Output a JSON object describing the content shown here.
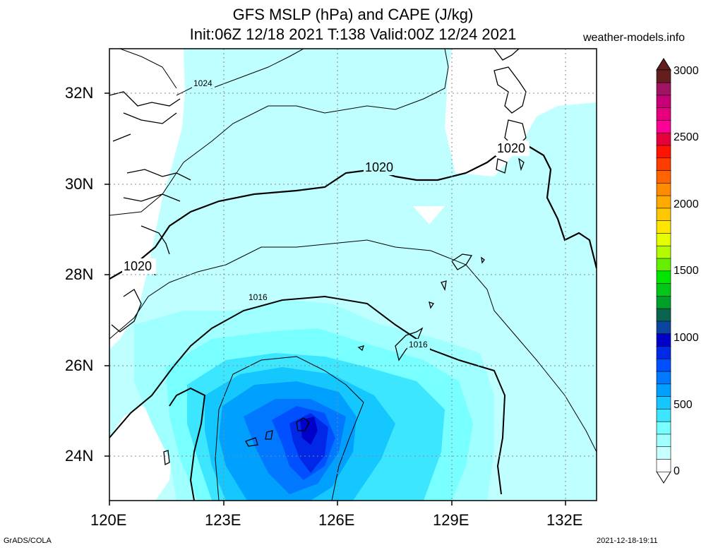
{
  "header": {
    "title_line1": "GFS MSLP (hPa) and CAPE (J/kg)",
    "title_line2": "Init:06Z 12/18 2021 T:138 Valid:00Z 12/24 2021",
    "site": "weather-models.info"
  },
  "footer": {
    "left": "GrADS/COLA",
    "right": "2021-12-18-19:11"
  },
  "map": {
    "lat_ticks": [
      "32N",
      "30N",
      "28N",
      "26N",
      "24N"
    ],
    "lon_ticks": [
      "120E",
      "123E",
      "126E",
      "129E",
      "132E"
    ],
    "isobar_labels": [
      "1024",
      "1020",
      "1020",
      "1020",
      "1016",
      "1016"
    ]
  },
  "colorbar": {
    "labels": [
      "3000",
      "2500",
      "2000",
      "1500",
      "1000",
      "500",
      "0"
    ],
    "colors": [
      "#ffffff",
      "#c8ffff",
      "#a0ffff",
      "#78ffff",
      "#3ce6ff",
      "#14c8ff",
      "#00a0ff",
      "#0078ff",
      "#0050ff",
      "#0028e6",
      "#0000c8",
      "#0a46a0",
      "#0a6450",
      "#00a028",
      "#00c814",
      "#00e600",
      "#64f000",
      "#b4fa00",
      "#e6ff00",
      "#ffe600",
      "#ffc800",
      "#ffaa00",
      "#ff8c00",
      "#ff6400",
      "#ff3c00",
      "#ff1400",
      "#e6003c",
      "#ff0096",
      "#e6007d",
      "#c80078",
      "#a01464",
      "#641e1e"
    ],
    "accent_ocean": "#c0ffff",
    "accent_land": "#ffffff"
  }
}
